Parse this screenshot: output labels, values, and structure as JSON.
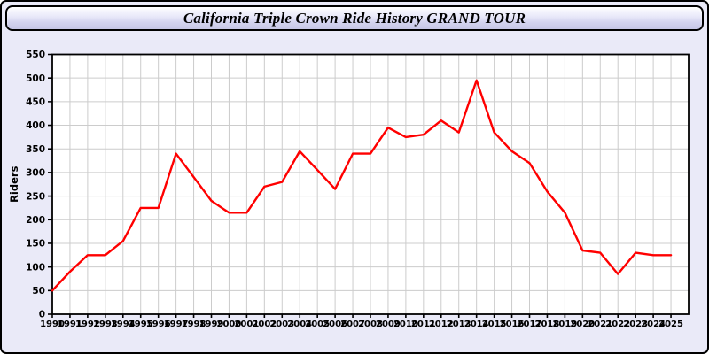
{
  "window": {
    "title": "California Triple Crown Ride History GRAND TOUR"
  },
  "colors": {
    "page_bg": "#eaeaf8",
    "titlebar_border": "#000000",
    "plot_bg": "#ffffff",
    "plot_border": "#000000",
    "gridline": "#cccccc",
    "tick_text": "#000000",
    "line": "#ff0000"
  },
  "chart_data": {
    "type": "line",
    "title": "California Triple Crown Ride History GRAND TOUR",
    "xlabel": "",
    "ylabel": "Riders",
    "ylim": [
      0,
      550
    ],
    "ytick_step": 50,
    "grid": true,
    "legend_position": "none",
    "x": [
      1990,
      1991,
      1992,
      1993,
      1994,
      1995,
      1996,
      1997,
      1998,
      1999,
      2000,
      2001,
      2002,
      2003,
      2004,
      2005,
      2006,
      2007,
      2008,
      2009,
      2010,
      2011,
      2012,
      2013,
      2014,
      2015,
      2016,
      2017,
      2018,
      2019,
      2020,
      2021,
      2022,
      2023,
      2024,
      2025
    ],
    "series": [
      {
        "name": "Riders",
        "color": "#ff0000",
        "values": [
          50,
          90,
          125,
          125,
          155,
          225,
          225,
          340,
          290,
          240,
          215,
          215,
          270,
          280,
          345,
          305,
          265,
          340,
          340,
          395,
          375,
          380,
          410,
          385,
          495,
          385,
          345,
          320,
          260,
          215,
          135,
          130,
          85,
          130,
          125,
          125
        ]
      }
    ]
  }
}
